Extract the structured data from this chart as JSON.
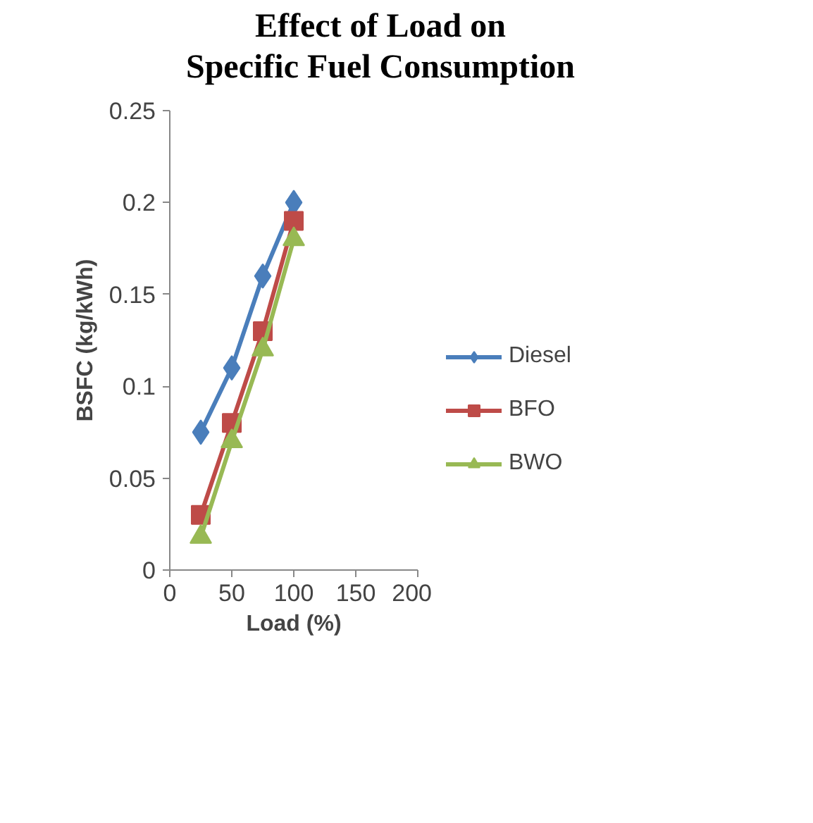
{
  "chart_data": {
    "type": "line",
    "title": "Effect of Load on Specific Fuel Consumption",
    "xlabel": "Load (%)",
    "ylabel": "BSFC (kg/kWh)",
    "x": [
      25,
      50,
      75,
      100
    ],
    "series": [
      {
        "name": "Diesel",
        "color": "#4a7ebb",
        "marker": "diamond",
        "values": [
          0.075,
          0.11,
          0.16,
          0.2
        ]
      },
      {
        "name": "BFO",
        "color": "#be4b48",
        "marker": "square",
        "values": [
          0.03,
          0.08,
          0.13,
          0.19
        ]
      },
      {
        "name": "BWO",
        "color": "#98b954",
        "marker": "triangle",
        "values": [
          0.018,
          0.07,
          0.12,
          0.18
        ]
      }
    ],
    "xlim": [
      0,
      200
    ],
    "xticks": [
      0,
      50,
      100,
      150,
      200
    ],
    "ylim": [
      0,
      0.25
    ],
    "yticks": [
      0,
      0.05,
      0.1,
      0.15,
      0.2,
      0.25
    ],
    "grid": false,
    "legend": "right",
    "line_style": "solid"
  }
}
